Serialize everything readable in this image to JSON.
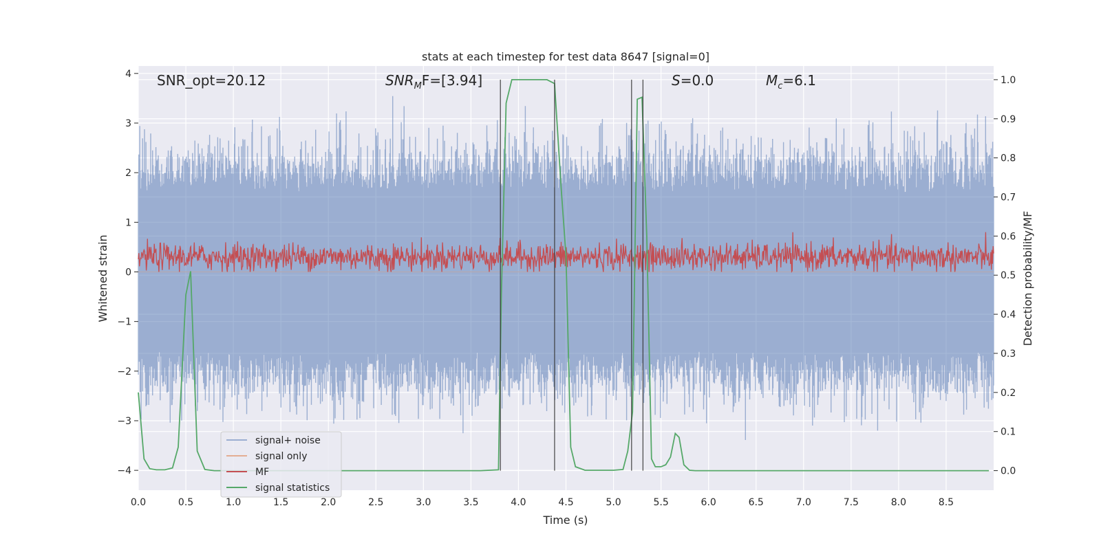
{
  "chart_data": {
    "type": "line",
    "title": "stats at each timestep for test data 8647 [signal=0]",
    "xlabel": "Time (s)",
    "ylabel": "Whitened strain",
    "ylabel_right": "Detection probability/MF",
    "xlim": [
      0.0,
      9.0
    ],
    "ylim_left": [
      -4.4,
      4.15
    ],
    "ylim_right": [
      -0.05,
      1.035
    ],
    "xticks": [
      0.0,
      0.5,
      1.0,
      1.5,
      2.0,
      2.5,
      3.0,
      3.5,
      4.0,
      4.5,
      5.0,
      5.5,
      6.0,
      6.5,
      7.0,
      7.5,
      8.0,
      8.5
    ],
    "xtick_labels": [
      "0.0",
      "0.5",
      "1.0",
      "1.5",
      "2.0",
      "2.5",
      "3.0",
      "3.5",
      "4.0",
      "4.5",
      "5.0",
      "5.5",
      "6.0",
      "6.5",
      "7.0",
      "7.5",
      "8.0",
      "8.5"
    ],
    "yticks_left": [
      4,
      3,
      2,
      1,
      0,
      -1,
      -2,
      -3,
      -4
    ],
    "ytick_labels_left": [
      "4",
      "3",
      "2",
      "1",
      "0",
      "−1",
      "−2",
      "−3",
      "−4"
    ],
    "yticks_right": [
      1.0,
      0.9,
      0.8,
      0.7,
      0.6,
      0.5,
      0.4,
      0.3,
      0.2,
      0.1,
      0.0
    ],
    "ytick_labels_right": [
      "1.0",
      "0.9",
      "0.8",
      "0.7",
      "0.6",
      "0.5",
      "0.4",
      "0.3",
      "0.2",
      "0.1",
      "0.0"
    ],
    "annotations": {
      "snr_opt": "SNR_opt=20.12",
      "snr_mf_main": "SNR",
      "snr_mf_sub": "M",
      "snr_mf_rest": "F=[3.94]",
      "s_main": "S",
      "s_rest": "=0.0",
      "mc_main": "M",
      "mc_sub": "c",
      "mc_rest": "=6.1"
    },
    "vertical_lines_x": [
      3.81,
      4.38,
      5.19,
      5.31
    ],
    "series": [
      {
        "name": "signal+ noise",
        "color": "#4c72b0",
        "axis": "left",
        "style": "noise",
        "amplitude_typical": 1.6,
        "amplitude_max": 3.8,
        "x_range": [
          0.0,
          9.0
        ]
      },
      {
        "name": "signal only",
        "color": "#dd8452",
        "axis": "left",
        "style": "flat",
        "values_note": "zero"
      },
      {
        "name": "MF",
        "color": "#c44e52",
        "axis": "left",
        "style": "noise",
        "center": 0.3,
        "amplitude_typical": 0.25,
        "amplitude_max": 0.95
      },
      {
        "name": "signal statistics",
        "color": "#55a868",
        "axis": "right",
        "x": [
          0.0,
          0.06,
          0.12,
          0.19,
          0.28,
          0.36,
          0.42,
          0.5,
          0.55,
          0.62,
          0.7,
          0.8,
          1.0,
          2.0,
          3.0,
          3.6,
          3.79,
          3.82,
          3.87,
          3.93,
          4.0,
          4.1,
          4.2,
          4.3,
          4.38,
          4.45,
          4.5,
          4.55,
          4.6,
          4.7,
          4.8,
          5.0,
          5.1,
          5.15,
          5.2,
          5.25,
          5.3,
          5.35,
          5.4,
          5.44,
          5.5,
          5.55,
          5.6,
          5.65,
          5.69,
          5.74,
          5.8,
          5.86,
          5.93,
          6.0,
          7.0,
          8.0,
          8.95
        ],
        "values": [
          0.2,
          0.03,
          0.005,
          0.002,
          0.002,
          0.007,
          0.06,
          0.45,
          0.51,
          0.05,
          0.003,
          0.0,
          0.0,
          0.0,
          0.0,
          0.0,
          0.002,
          0.45,
          0.94,
          1.0,
          1.0,
          1.0,
          1.0,
          1.0,
          0.99,
          0.72,
          0.55,
          0.06,
          0.01,
          0.001,
          0.001,
          0.001,
          0.003,
          0.05,
          0.15,
          0.95,
          0.955,
          0.6,
          0.03,
          0.01,
          0.01,
          0.015,
          0.035,
          0.095,
          0.085,
          0.015,
          0.001,
          0.0,
          0.0,
          0.0,
          0.0,
          0.0,
          0.0
        ]
      }
    ],
    "legend": {
      "position": "lower-left",
      "entries": [
        "signal+ noise",
        "signal only",
        "MF",
        "signal statistics"
      ]
    }
  }
}
